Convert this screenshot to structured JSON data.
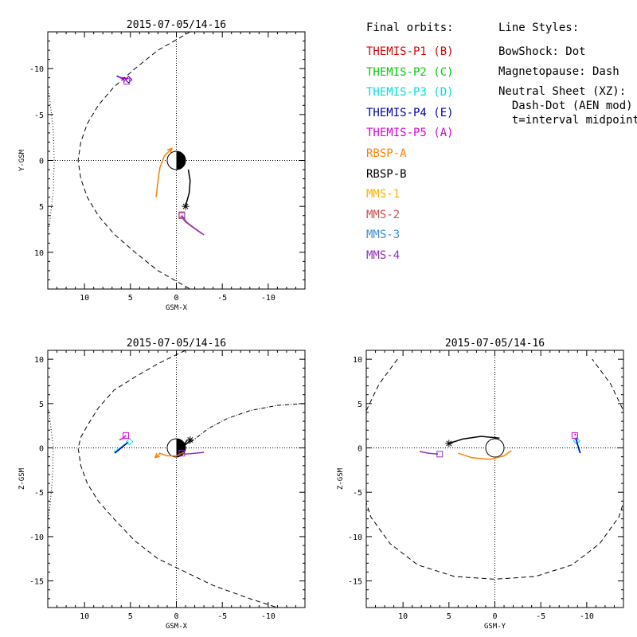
{
  "legend": {
    "orbits_title": "Final orbits:",
    "orbits": [
      {
        "label": "THEMIS-P1 (B)",
        "color": "#e00000"
      },
      {
        "label": "THEMIS-P2 (C)",
        "color": "#00d000"
      },
      {
        "label": "THEMIS-P3 (D)",
        "color": "#00e0e0"
      },
      {
        "label": "THEMIS-P4 (E)",
        "color": "#0000c0"
      },
      {
        "label": "THEMIS-P5 (A)",
        "color": "#e000e0"
      },
      {
        "label": "RBSP-A",
        "color": "#ff8000"
      },
      {
        "label": "RBSP-B",
        "color": "#000000"
      },
      {
        "label": "MMS-1",
        "color": "#ffb000"
      },
      {
        "label": "MMS-2",
        "color": "#d05050"
      },
      {
        "label": "MMS-3",
        "color": "#4090d0"
      },
      {
        "label": "MMS-4",
        "color": "#9030c0"
      }
    ],
    "styles_title": "Line Styles:",
    "styles": [
      "BowShock: Dot",
      "Magnetopause: Dash",
      "Neutral Sheet (XZ):",
      "  Dash-Dot (AEN mod)",
      "  t=interval midpoint"
    ]
  },
  "chart_data": [
    {
      "id": "xy",
      "type": "line",
      "title": "2015-07-05/14-16",
      "xlabel": "GSM-X",
      "ylabel": "Y-GSM",
      "xlim": [
        14,
        -14
      ],
      "ylim": [
        14,
        -14
      ],
      "xticks": [
        10,
        5,
        0,
        -5,
        -10
      ],
      "yticks": [
        -10,
        -5,
        0,
        5,
        10
      ],
      "bowshock": [
        [
          15.5,
          -13.5
        ],
        [
          14.5,
          -10.3
        ],
        [
          13.8,
          -6.8
        ],
        [
          13.4,
          -3.3
        ],
        [
          13.3,
          0
        ],
        [
          13.4,
          3.3
        ],
        [
          13.8,
          6.8
        ],
        [
          14.5,
          10.3
        ],
        [
          15.5,
          13.5
        ]
      ],
      "magnetopause": [
        [
          -1.5,
          -14
        ],
        [
          2,
          -12
        ],
        [
          4.5,
          -10
        ],
        [
          6.8,
          -8
        ],
        [
          8.5,
          -6
        ],
        [
          9.7,
          -4
        ],
        [
          10.4,
          -2
        ],
        [
          10.7,
          0
        ],
        [
          10.4,
          2
        ],
        [
          9.7,
          4
        ],
        [
          8.5,
          6
        ],
        [
          6.8,
          8
        ],
        [
          4.5,
          10
        ],
        [
          2,
          12
        ],
        [
          -1.5,
          14
        ]
      ],
      "orbits": [
        {
          "name": "THEMIS-P4 (E)",
          "color": "#0000c0",
          "points": [
            [
              6.5,
              -9.2
            ],
            [
              6.0,
              -9.0
            ],
            [
              5.3,
              -8.9
            ]
          ],
          "end_marker": "diamond",
          "end": [
            5.2,
            -8.8
          ]
        },
        {
          "name": "THEMIS-P5 (A)",
          "color": "#e000e0",
          "points": [
            [
              6.3,
              -9.1
            ],
            [
              5.9,
              -8.9
            ],
            [
              5.6,
              -8.6
            ]
          ],
          "end_marker": "square",
          "end": [
            5.4,
            -8.6
          ]
        },
        {
          "name": "RBSP-A",
          "color": "#ff8000",
          "points": [
            [
              0.5,
              -1.3
            ],
            [
              1.3,
              -0.5
            ],
            [
              1.8,
              0.8
            ],
            [
              2.0,
              2.3
            ],
            [
              2.2,
              4.0
            ]
          ],
          "arrow_start": true
        },
        {
          "name": "RBSP-B",
          "color": "#000000",
          "points": [
            [
              -1.3,
              1.0
            ],
            [
              -1.5,
              2.2
            ],
            [
              -1.4,
              3.5
            ],
            [
              -1.0,
              5.0
            ]
          ],
          "end_marker": "asterisk",
          "end": [
            -1.0,
            5.0
          ]
        },
        {
          "name": "MMS-1",
          "color": "#ffb000",
          "points": [
            [
              -2.8,
              8.0
            ],
            [
              -1.8,
              7.3
            ],
            [
              -1.0,
              6.7
            ],
            [
              -0.5,
              6.1
            ]
          ],
          "end_marker": "square",
          "end": [
            -0.6,
            6.0
          ]
        },
        {
          "name": "MMS-2",
          "color": "#d05050",
          "points": [
            [
              -2.7,
              7.9
            ],
            [
              -1.7,
              7.2
            ],
            [
              -0.9,
              6.6
            ],
            [
              -0.5,
              6.0
            ]
          ],
          "end_marker": "square",
          "end": [
            -0.6,
            5.9
          ]
        },
        {
          "name": "MMS-4",
          "color": "#9030c0",
          "points": [
            [
              -3.0,
              8.1
            ],
            [
              -2.0,
              7.4
            ],
            [
              -1.1,
              6.7
            ],
            [
              -0.6,
              6.0
            ]
          ],
          "end_marker": "square",
          "end": [
            -0.6,
            6.0
          ]
        }
      ]
    },
    {
      "id": "xz",
      "type": "line",
      "title": "2015-07-05/14-16",
      "xlabel": "GSM-X",
      "ylabel": "Z-GSM",
      "xlim": [
        14,
        -14
      ],
      "ylim": [
        -18,
        11
      ],
      "xticks": [
        10,
        5,
        0,
        -5,
        -10
      ],
      "yticks": [
        -15,
        -10,
        -5,
        0,
        5,
        10
      ],
      "bowshock": [
        [
          15.5,
          11
        ],
        [
          14.5,
          7.5
        ],
        [
          13.8,
          3.5
        ],
        [
          13.4,
          0
        ],
        [
          13.5,
          -3.5
        ],
        [
          13.8,
          -7
        ],
        [
          14.5,
          -11
        ],
        [
          15.5,
          -15
        ],
        [
          16.5,
          -18
        ]
      ],
      "magnetopause": [
        [
          -1,
          11
        ],
        [
          2,
          9.5
        ],
        [
          4.5,
          8
        ],
        [
          6.8,
          6.5
        ],
        [
          8.5,
          4.5
        ],
        [
          9.7,
          2.5
        ],
        [
          10.4,
          1.2
        ],
        [
          10.7,
          0
        ],
        [
          10.4,
          -2
        ],
        [
          9.7,
          -4
        ],
        [
          8.5,
          -6
        ],
        [
          6.8,
          -8
        ],
        [
          4.5,
          -10.5
        ],
        [
          2,
          -12.5
        ],
        [
          -1,
          -14
        ],
        [
          -4,
          -15.5
        ],
        [
          -8,
          -17
        ],
        [
          -11,
          -18
        ]
      ],
      "neutral_sheet": [
        [
          -14,
          5.0
        ],
        [
          -11,
          4.8
        ],
        [
          -8,
          4.2
        ],
        [
          -5.5,
          3.3
        ],
        [
          -3.5,
          2.2
        ],
        [
          -2,
          1.0
        ],
        [
          -1.2,
          0.4
        ]
      ],
      "orbits": [
        {
          "name": "THEMIS-P3 (D)",
          "color": "#00e0e0",
          "points": [
            [
              6.8,
              -0.5
            ],
            [
              6.0,
              0.1
            ],
            [
              5.2,
              0.7
            ]
          ],
          "end_marker": "diamond",
          "end": [
            5.1,
            0.7
          ]
        },
        {
          "name": "THEMIS-P4 (E)",
          "color": "#0000c0",
          "points": [
            [
              6.7,
              -0.6
            ],
            [
              6.0,
              0.0
            ],
            [
              5.3,
              0.6
            ]
          ]
        },
        {
          "name": "THEMIS-P5 (A)",
          "color": "#e000e0",
          "points": [
            [
              6.2,
              0.9
            ],
            [
              5.8,
              1.1
            ],
            [
              5.5,
              1.4
            ]
          ],
          "end_marker": "square",
          "end": [
            5.5,
            1.4
          ]
        },
        {
          "name": "RBSP-A",
          "color": "#ff8000",
          "points": [
            [
              -0.8,
              -0.5
            ],
            [
              0,
              -0.9
            ],
            [
              1.0,
              -0.9
            ],
            [
              1.8,
              -0.6
            ],
            [
              2.3,
              -1.1
            ]
          ],
          "arrow_end": true
        },
        {
          "name": "RBSP-B",
          "color": "#000000",
          "points": [
            [
              -1.2,
              0.9
            ],
            [
              -1.0,
              0.6
            ],
            [
              -0.8,
              0.2
            ],
            [
              -1.5,
              0.8
            ]
          ],
          "end_marker": "asterisk",
          "end": [
            -1.5,
            0.9
          ]
        },
        {
          "name": "MMS-4",
          "color": "#9030c0",
          "points": [
            [
              -3.0,
              -0.5
            ],
            [
              -2.0,
              -0.6
            ],
            [
              -1.0,
              -0.7
            ],
            [
              -0.5,
              -0.6
            ]
          ],
          "end_marker": "square",
          "end": [
            -0.6,
            -0.6
          ]
        }
      ]
    },
    {
      "id": "yz",
      "type": "line",
      "title": "2015-07-05/14-16",
      "xlabel": "GSM-Y",
      "ylabel": "Z-GSM",
      "xlim": [
        14,
        -14
      ],
      "ylim": [
        -18,
        11
      ],
      "xticks": [
        10,
        5,
        0,
        -5,
        -10
      ],
      "yticks": [
        -15,
        -10,
        -5,
        0,
        5,
        10
      ],
      "magnetopause": [
        [
          10.6,
          10
        ],
        [
          12.6,
          7.2
        ],
        [
          14.0,
          4.2
        ],
        [
          14.8,
          0
        ],
        [
          14.6,
          -4.2
        ],
        [
          13.5,
          -7.8
        ],
        [
          11.4,
          -10.8
        ],
        [
          8.4,
          -13.2
        ],
        [
          4.4,
          -14.5
        ],
        [
          0,
          -14.8
        ],
        [
          -4.4,
          -14.5
        ],
        [
          -8.4,
          -13.2
        ],
        [
          -11.4,
          -10.8
        ],
        [
          -13.5,
          -7.8
        ],
        [
          -14.6,
          -4.2
        ],
        [
          -14.8,
          0
        ],
        [
          -14.0,
          4.2
        ],
        [
          -12.6,
          7.2
        ],
        [
          -10.6,
          10
        ]
      ],
      "orbits": [
        {
          "name": "THEMIS-P3 (D)",
          "color": "#00e0e0",
          "points": [
            [
              -8.9,
              1.2
            ],
            [
              -9.0,
              0.5
            ],
            [
              -9.2,
              -0.5
            ]
          ],
          "end_marker": "diamond",
          "end": [
            -8.9,
            0.8
          ]
        },
        {
          "name": "THEMIS-P4 (E)",
          "color": "#0000c0",
          "points": [
            [
              -8.8,
              1.1
            ],
            [
              -9.0,
              0.4
            ],
            [
              -9.3,
              -0.6
            ]
          ]
        },
        {
          "name": "THEMIS-P5 (A)",
          "color": "#e000e0",
          "points": [
            [
              -8.7,
              1.6
            ],
            [
              -8.8,
              1.4
            ]
          ],
          "end_marker": "square",
          "end": [
            -8.7,
            1.4
          ]
        },
        {
          "name": "RBSP-A",
          "color": "#ff8000",
          "points": [
            [
              4.0,
              -0.6
            ],
            [
              2.5,
              -1.1
            ],
            [
              0.5,
              -1.3
            ],
            [
              -1.0,
              -0.9
            ],
            [
              -1.8,
              -0.3
            ]
          ]
        },
        {
          "name": "RBSP-B",
          "color": "#000000",
          "points": [
            [
              5.0,
              0.5
            ],
            [
              3.5,
              1.0
            ],
            [
              1.5,
              1.3
            ],
            [
              -0.5,
              1.1
            ]
          ],
          "end_marker": "asterisk",
          "end": [
            5.0,
            0.5
          ]
        },
        {
          "name": "MMS-4",
          "color": "#9030c0",
          "points": [
            [
              8.2,
              -0.4
            ],
            [
              7.2,
              -0.6
            ],
            [
              6.2,
              -0.7
            ]
          ],
          "end_marker": "square",
          "end": [
            6.0,
            -0.7
          ]
        }
      ]
    }
  ]
}
